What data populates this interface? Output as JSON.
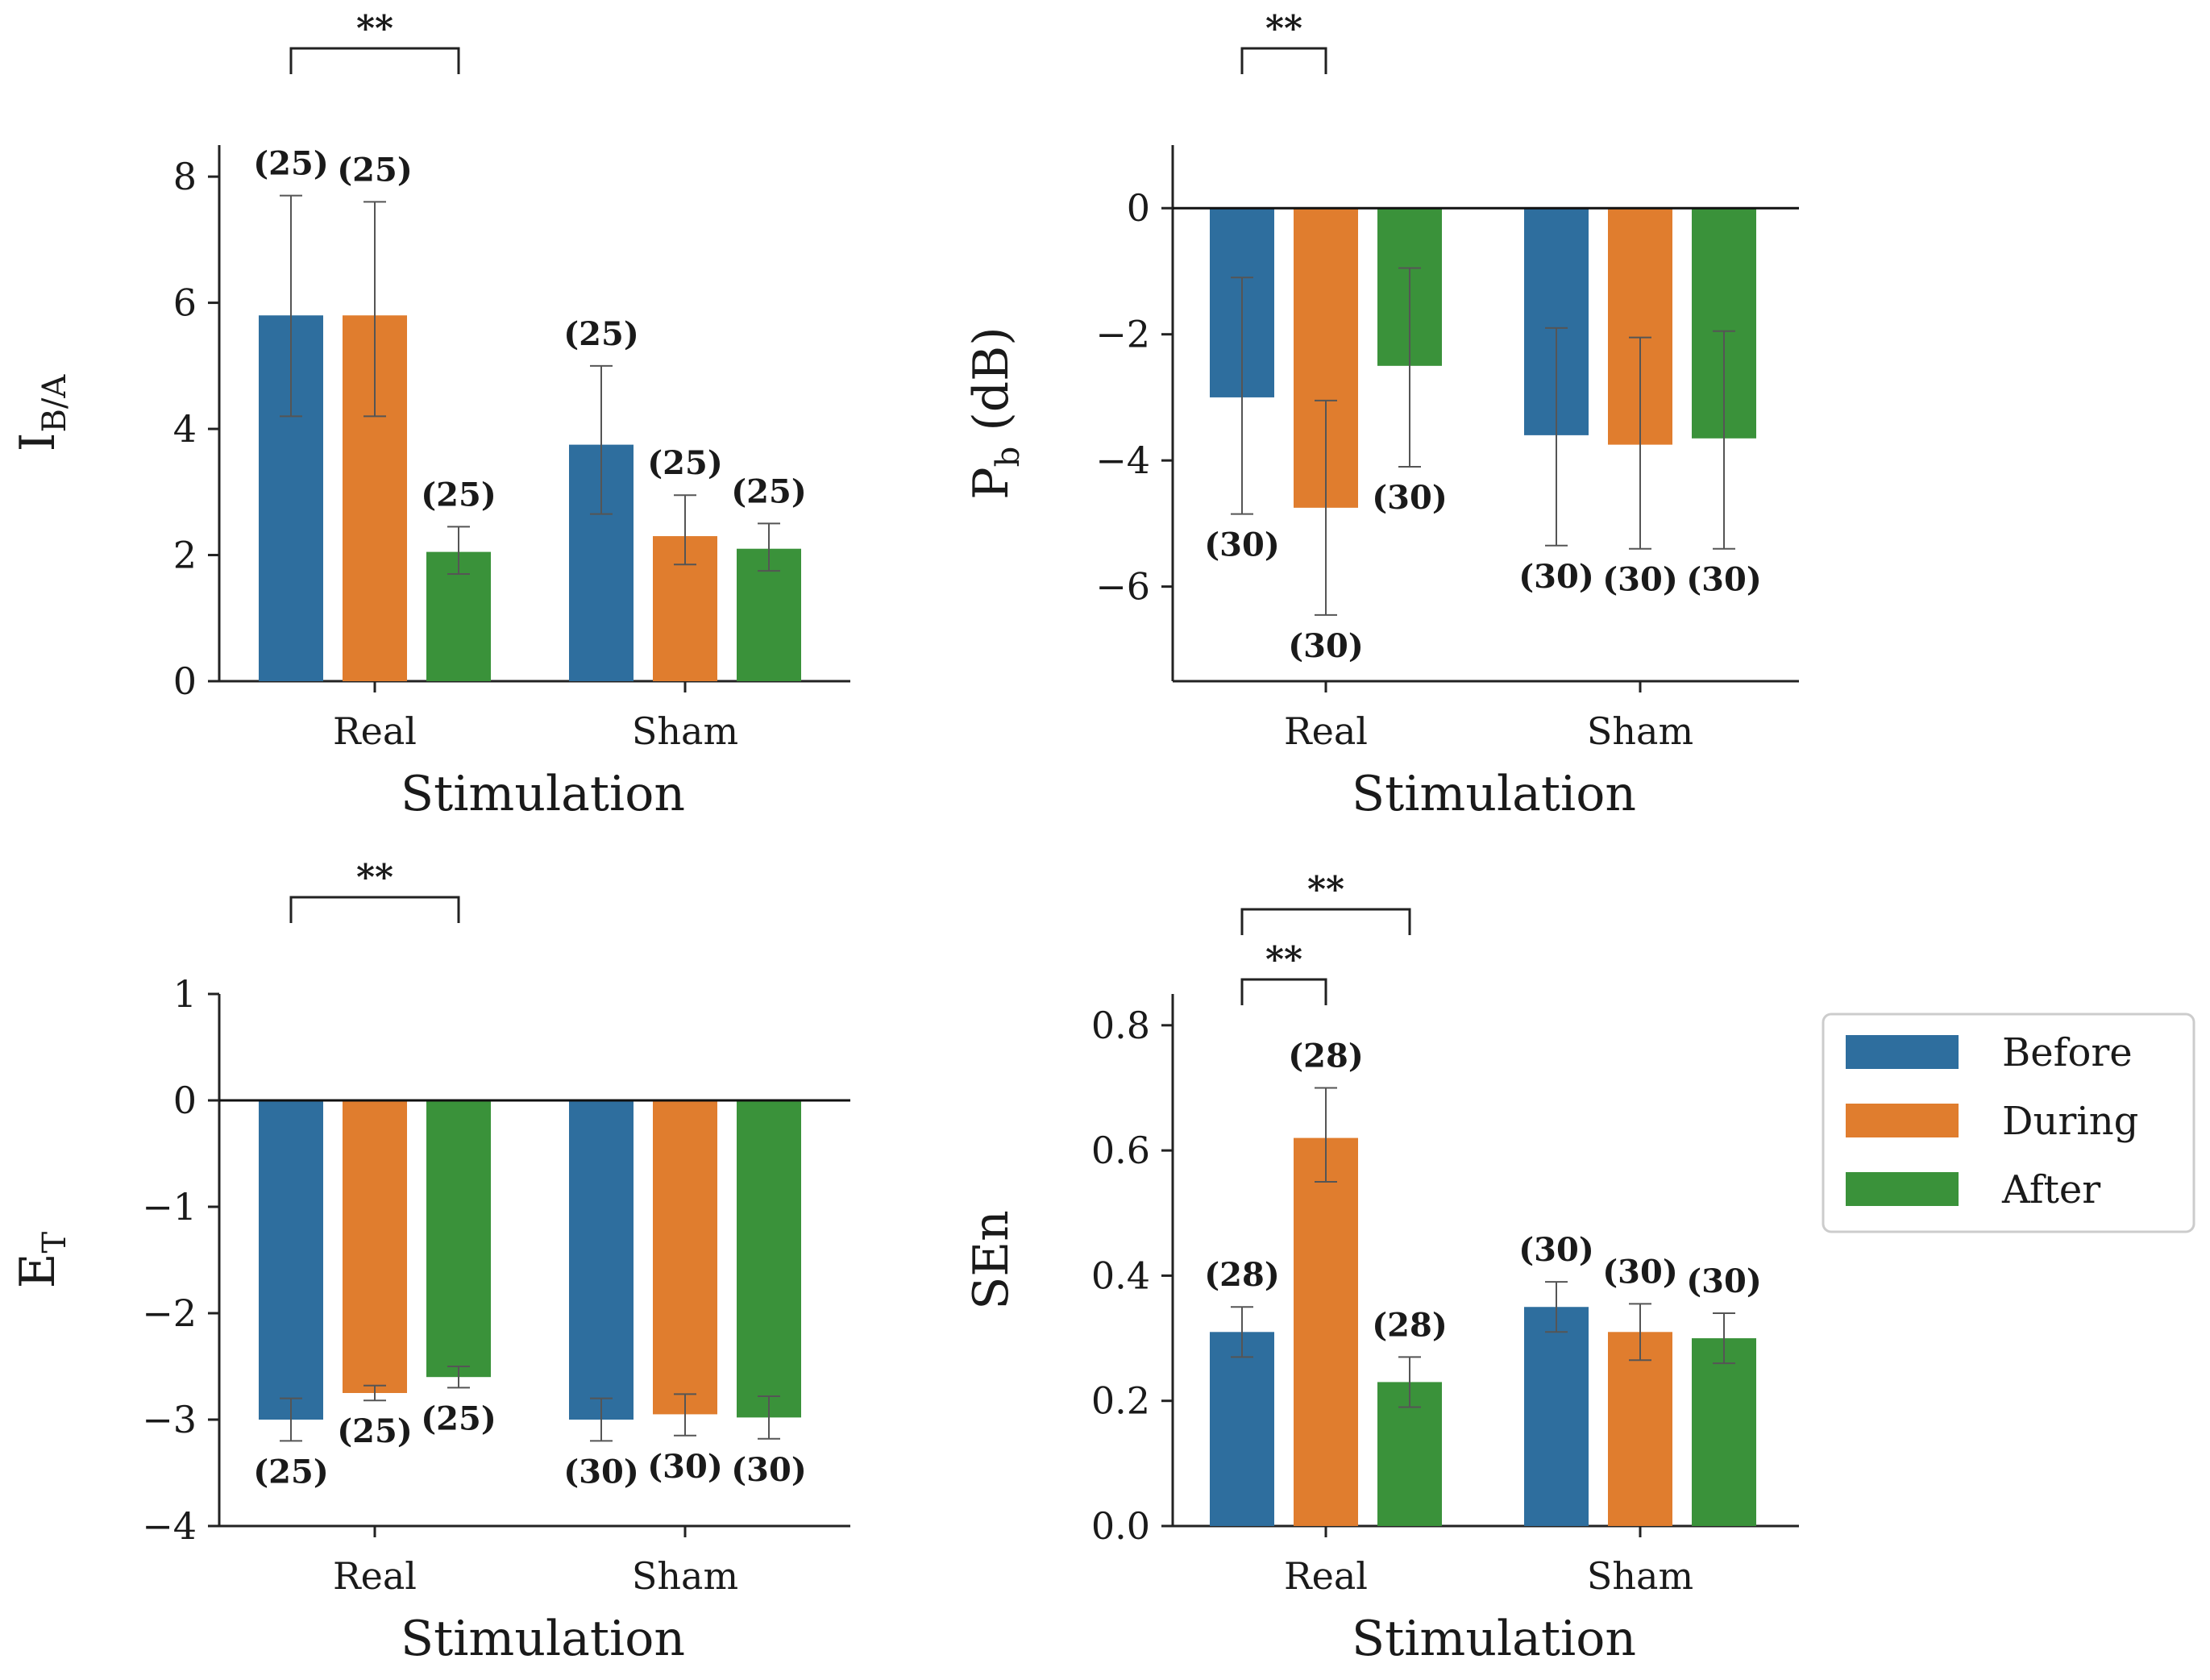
{
  "figure": {
    "legend": [
      {
        "key": "before",
        "label": "Before",
        "color": "#2e6e9e"
      },
      {
        "key": "during",
        "label": "During",
        "color": "#e07d2e"
      },
      {
        "key": "after",
        "label": "After",
        "color": "#3a923a"
      }
    ],
    "legend_position": "right of bottom-right panel"
  },
  "chart_data": [
    {
      "id": "ib",
      "type": "bar",
      "ylabel": "I",
      "ylabel_sub": "B/A",
      "xlabel": "Stimulation",
      "categories": [
        "Real",
        "Sham"
      ],
      "ylim": [
        0,
        8.5
      ],
      "yticks": [
        0,
        2,
        4,
        6,
        8
      ],
      "zero_line": false,
      "series": [
        {
          "name": "Before",
          "values": [
            5.8,
            3.75
          ],
          "err_low": [
            4.2,
            2.65
          ],
          "err_high": [
            7.7,
            5.0
          ],
          "counts": [
            "(25)",
            "(25)"
          ]
        },
        {
          "name": "During",
          "values": [
            5.8,
            2.3
          ],
          "err_low": [
            4.2,
            1.85
          ],
          "err_high": [
            7.6,
            2.95
          ],
          "counts": [
            "(25)",
            "(25)"
          ]
        },
        {
          "name": "After",
          "values": [
            2.05,
            2.1
          ],
          "err_low": [
            1.7,
            1.75
          ],
          "err_high": [
            2.45,
            2.5
          ],
          "counts": [
            "(25)",
            "(25)"
          ]
        }
      ],
      "significance": [
        {
          "from": "Real-Before",
          "to": "Real-After",
          "label": "**"
        }
      ]
    },
    {
      "id": "pb",
      "type": "bar",
      "ylabel": "P",
      "ylabel_sub": "b",
      "ylabel_suffix": " (dB)",
      "xlabel": "Stimulation",
      "categories": [
        "Real",
        "Sham"
      ],
      "ylim": [
        -7.5,
        1.0
      ],
      "yticks": [
        0,
        -2,
        -4,
        -6
      ],
      "zero_line": true,
      "series": [
        {
          "name": "Before",
          "values": [
            -3.0,
            -3.6
          ],
          "err_low": [
            -4.85,
            -5.35
          ],
          "err_high": [
            -1.1,
            -1.9
          ],
          "counts": [
            "(30)",
            "(30)"
          ]
        },
        {
          "name": "During",
          "values": [
            -4.75,
            -3.75
          ],
          "err_low": [
            -6.45,
            -5.4
          ],
          "err_high": [
            -3.05,
            -2.05
          ],
          "counts": [
            "(30)",
            "(30)"
          ]
        },
        {
          "name": "After",
          "values": [
            -2.5,
            -3.65
          ],
          "err_low": [
            -4.1,
            -5.4
          ],
          "err_high": [
            -0.95,
            -1.95
          ],
          "counts": [
            "(30)",
            "(30)"
          ]
        }
      ],
      "significance": [
        {
          "from": "Real-Before",
          "to": "Real-During",
          "label": "**"
        }
      ]
    },
    {
      "id": "et",
      "type": "bar",
      "ylabel": "E",
      "ylabel_sub": "T",
      "xlabel": "Stimulation",
      "categories": [
        "Real",
        "Sham"
      ],
      "ylim": [
        -4,
        1
      ],
      "yticks": [
        1,
        0,
        -1,
        -2,
        -3,
        -4
      ],
      "zero_line": true,
      "series": [
        {
          "name": "Before",
          "values": [
            -3.0,
            -3.0
          ],
          "err_low": [
            -3.2,
            -3.2
          ],
          "err_high": [
            -2.8,
            -2.8
          ],
          "counts": [
            "(25)",
            "(30)"
          ]
        },
        {
          "name": "During",
          "values": [
            -2.75,
            -2.95
          ],
          "err_low": [
            -2.82,
            -3.15
          ],
          "err_high": [
            -2.68,
            -2.76
          ],
          "counts": [
            "(25)",
            "(30)"
          ]
        },
        {
          "name": "After",
          "values": [
            -2.6,
            -2.98
          ],
          "err_low": [
            -2.7,
            -3.18
          ],
          "err_high": [
            -2.5,
            -2.78
          ],
          "counts": [
            "(25)",
            "(30)"
          ]
        }
      ],
      "significance": [
        {
          "from": "Real-Before",
          "to": "Real-After",
          "label": "**"
        }
      ]
    },
    {
      "id": "sen",
      "type": "bar",
      "ylabel": "SEn",
      "ylabel_sub": "",
      "xlabel": "Stimulation",
      "categories": [
        "Real",
        "Sham"
      ],
      "ylim": [
        0,
        0.85
      ],
      "yticks": [
        0.0,
        0.2,
        0.4,
        0.6,
        0.8
      ],
      "ytick_labels": [
        "0.0",
        "0.2",
        "0.4",
        "0.6",
        "0.8"
      ],
      "zero_line": false,
      "series": [
        {
          "name": "Before",
          "values": [
            0.31,
            0.35
          ],
          "err_low": [
            0.27,
            0.31
          ],
          "err_high": [
            0.35,
            0.39
          ],
          "counts": [
            "(28)",
            "(30)"
          ]
        },
        {
          "name": "During",
          "values": [
            0.62,
            0.31
          ],
          "err_low": [
            0.55,
            0.265
          ],
          "err_high": [
            0.7,
            0.355
          ],
          "counts": [
            "(28)",
            "(30)"
          ]
        },
        {
          "name": "After",
          "values": [
            0.23,
            0.3
          ],
          "err_low": [
            0.19,
            0.26
          ],
          "err_high": [
            0.27,
            0.34
          ],
          "counts": [
            "(28)",
            "(30)"
          ]
        }
      ],
      "significance": [
        {
          "from": "Real-Before",
          "to": "Real-During",
          "label": "**",
          "level": 0
        },
        {
          "from": "Real-Before",
          "to": "Real-After",
          "label": "**",
          "level": 1
        }
      ]
    }
  ]
}
